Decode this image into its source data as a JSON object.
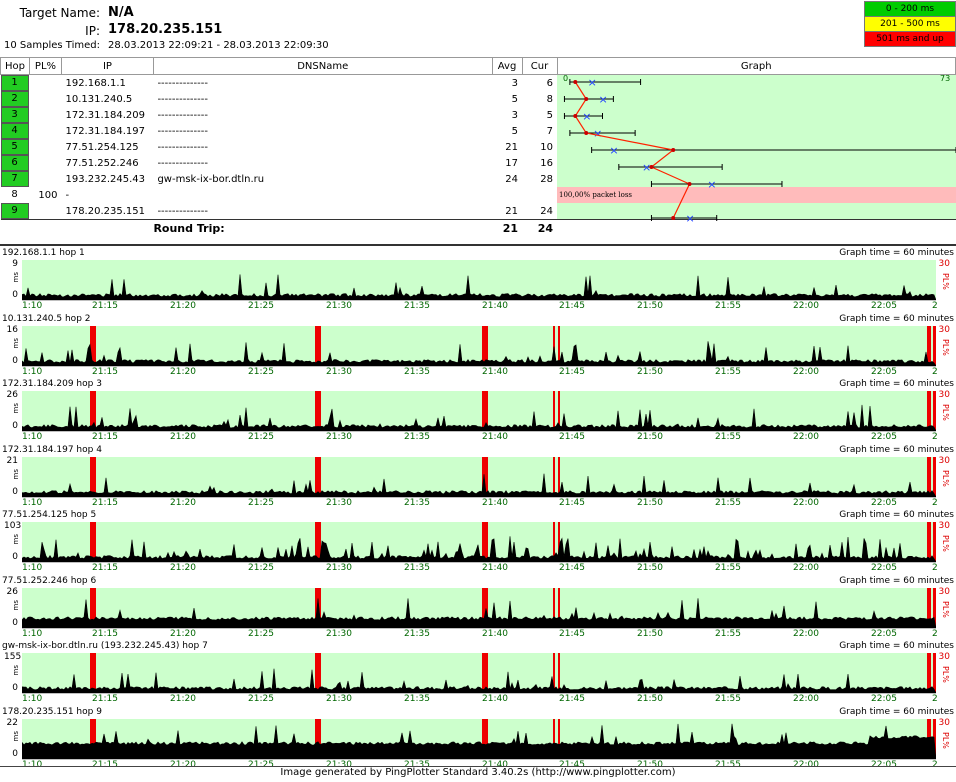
{
  "header": {
    "target_label": "Target Name:",
    "target_value": "N/A",
    "ip_label": "IP:",
    "ip_value": "178.20.235.151",
    "samples_label": "10 Samples Timed:",
    "samples_value": "28.03.2013 22:09:21 - 28.03.2013 22:09:30"
  },
  "legend": [
    {
      "label": "0 - 200 ms",
      "color": "#00cc00"
    },
    {
      "label": "201 - 500 ms",
      "color": "#ffff00"
    },
    {
      "label": "501 ms and up",
      "color": "#ff0000"
    }
  ],
  "table": {
    "headers": {
      "hop": "Hop",
      "pl": "PL%",
      "ip": "IP",
      "dns": "DNSName",
      "avg": "Avg",
      "cur": "Cur",
      "graph": "Graph"
    },
    "graph_scale_min": "0",
    "graph_scale_max": "73",
    "rows": [
      {
        "hop": "1",
        "pl": "",
        "ip": "192.168.1.1",
        "dns": "--------------",
        "avg": "3",
        "cur": "6"
      },
      {
        "hop": "2",
        "pl": "",
        "ip": "10.131.240.5",
        "dns": "--------------",
        "avg": "5",
        "cur": "8"
      },
      {
        "hop": "3",
        "pl": "",
        "ip": "172.31.184.209",
        "dns": "--------------",
        "avg": "3",
        "cur": "5"
      },
      {
        "hop": "4",
        "pl": "",
        "ip": "172.31.184.197",
        "dns": "--------------",
        "avg": "5",
        "cur": "7"
      },
      {
        "hop": "5",
        "pl": "",
        "ip": "77.51.254.125",
        "dns": "--------------",
        "avg": "21",
        "cur": "10"
      },
      {
        "hop": "6",
        "pl": "",
        "ip": "77.51.252.246",
        "dns": "--------------",
        "avg": "17",
        "cur": "16"
      },
      {
        "hop": "7",
        "pl": "",
        "ip": "193.232.245.43",
        "dns": "gw-msk-ix-bor.dtln.ru",
        "avg": "24",
        "cur": "28"
      },
      {
        "hop": "8",
        "pl": "100",
        "ip": "-",
        "dns": "",
        "avg": "",
        "cur": ""
      },
      {
        "hop": "9",
        "pl": "",
        "ip": "178.20.235.151",
        "dns": "--------------",
        "avg": "21",
        "cur": "24"
      }
    ],
    "packet_loss_text": "100,00% packet loss",
    "round_trip_label": "Round Trip:",
    "round_trip_avg": "21",
    "round_trip_cur": "24"
  },
  "panels": [
    {
      "title": "192.168.1.1 hop 1",
      "ymax": "9",
      "graph_time": "Graph time = 60 minutes",
      "y0": "0",
      "ms": "ms",
      "pl30": "30",
      "plpct": "PL%"
    },
    {
      "title": "10.131.240.5 hop 2",
      "ymax": "16",
      "graph_time": "Graph time = 60 minutes",
      "y0": "0",
      "ms": "ms",
      "pl30": "30",
      "plpct": "PL%"
    },
    {
      "title": "172.31.184.209 hop 3",
      "ymax": "26",
      "graph_time": "Graph time = 60 minutes",
      "y0": "0",
      "ms": "ms",
      "pl30": "30",
      "plpct": "PL%"
    },
    {
      "title": "172.31.184.197 hop 4",
      "ymax": "21",
      "graph_time": "Graph time = 60 minutes",
      "y0": "0",
      "ms": "ms",
      "pl30": "30",
      "plpct": "PL%"
    },
    {
      "title": "77.51.254.125 hop 5",
      "ymax": "103",
      "graph_time": "Graph time = 60 minutes",
      "y0": "0",
      "ms": "ms",
      "pl30": "30",
      "plpct": "PL%"
    },
    {
      "title": "77.51.252.246 hop 6",
      "ymax": "26",
      "graph_time": "Graph time = 60 minutes",
      "y0": "0",
      "ms": "ms",
      "pl30": "30",
      "plpct": "PL%"
    },
    {
      "title": "gw-msk-ix-bor.dtln.ru (193.232.245.43) hop 7",
      "ymax": "155",
      "graph_time": "Graph time = 60 minutes",
      "y0": "0",
      "ms": "ms",
      "pl30": "30",
      "plpct": "PL%"
    },
    {
      "title": "178.20.235.151 hop 9",
      "ymax": "22",
      "graph_time": "Graph time = 60 minutes",
      "y0": "0",
      "ms": "ms",
      "pl30": "30",
      "plpct": "PL%"
    }
  ],
  "time_labels": [
    "1:10",
    "21:15",
    "21:20",
    "21:25",
    "21:30",
    "21:35",
    "21:40",
    "21:45",
    "21:50",
    "21:55",
    "22:00",
    "22:05",
    "2"
  ],
  "footer": "Image generated by PingPlotter Standard 3.40.2s (http://www.pingplotter.com)"
}
